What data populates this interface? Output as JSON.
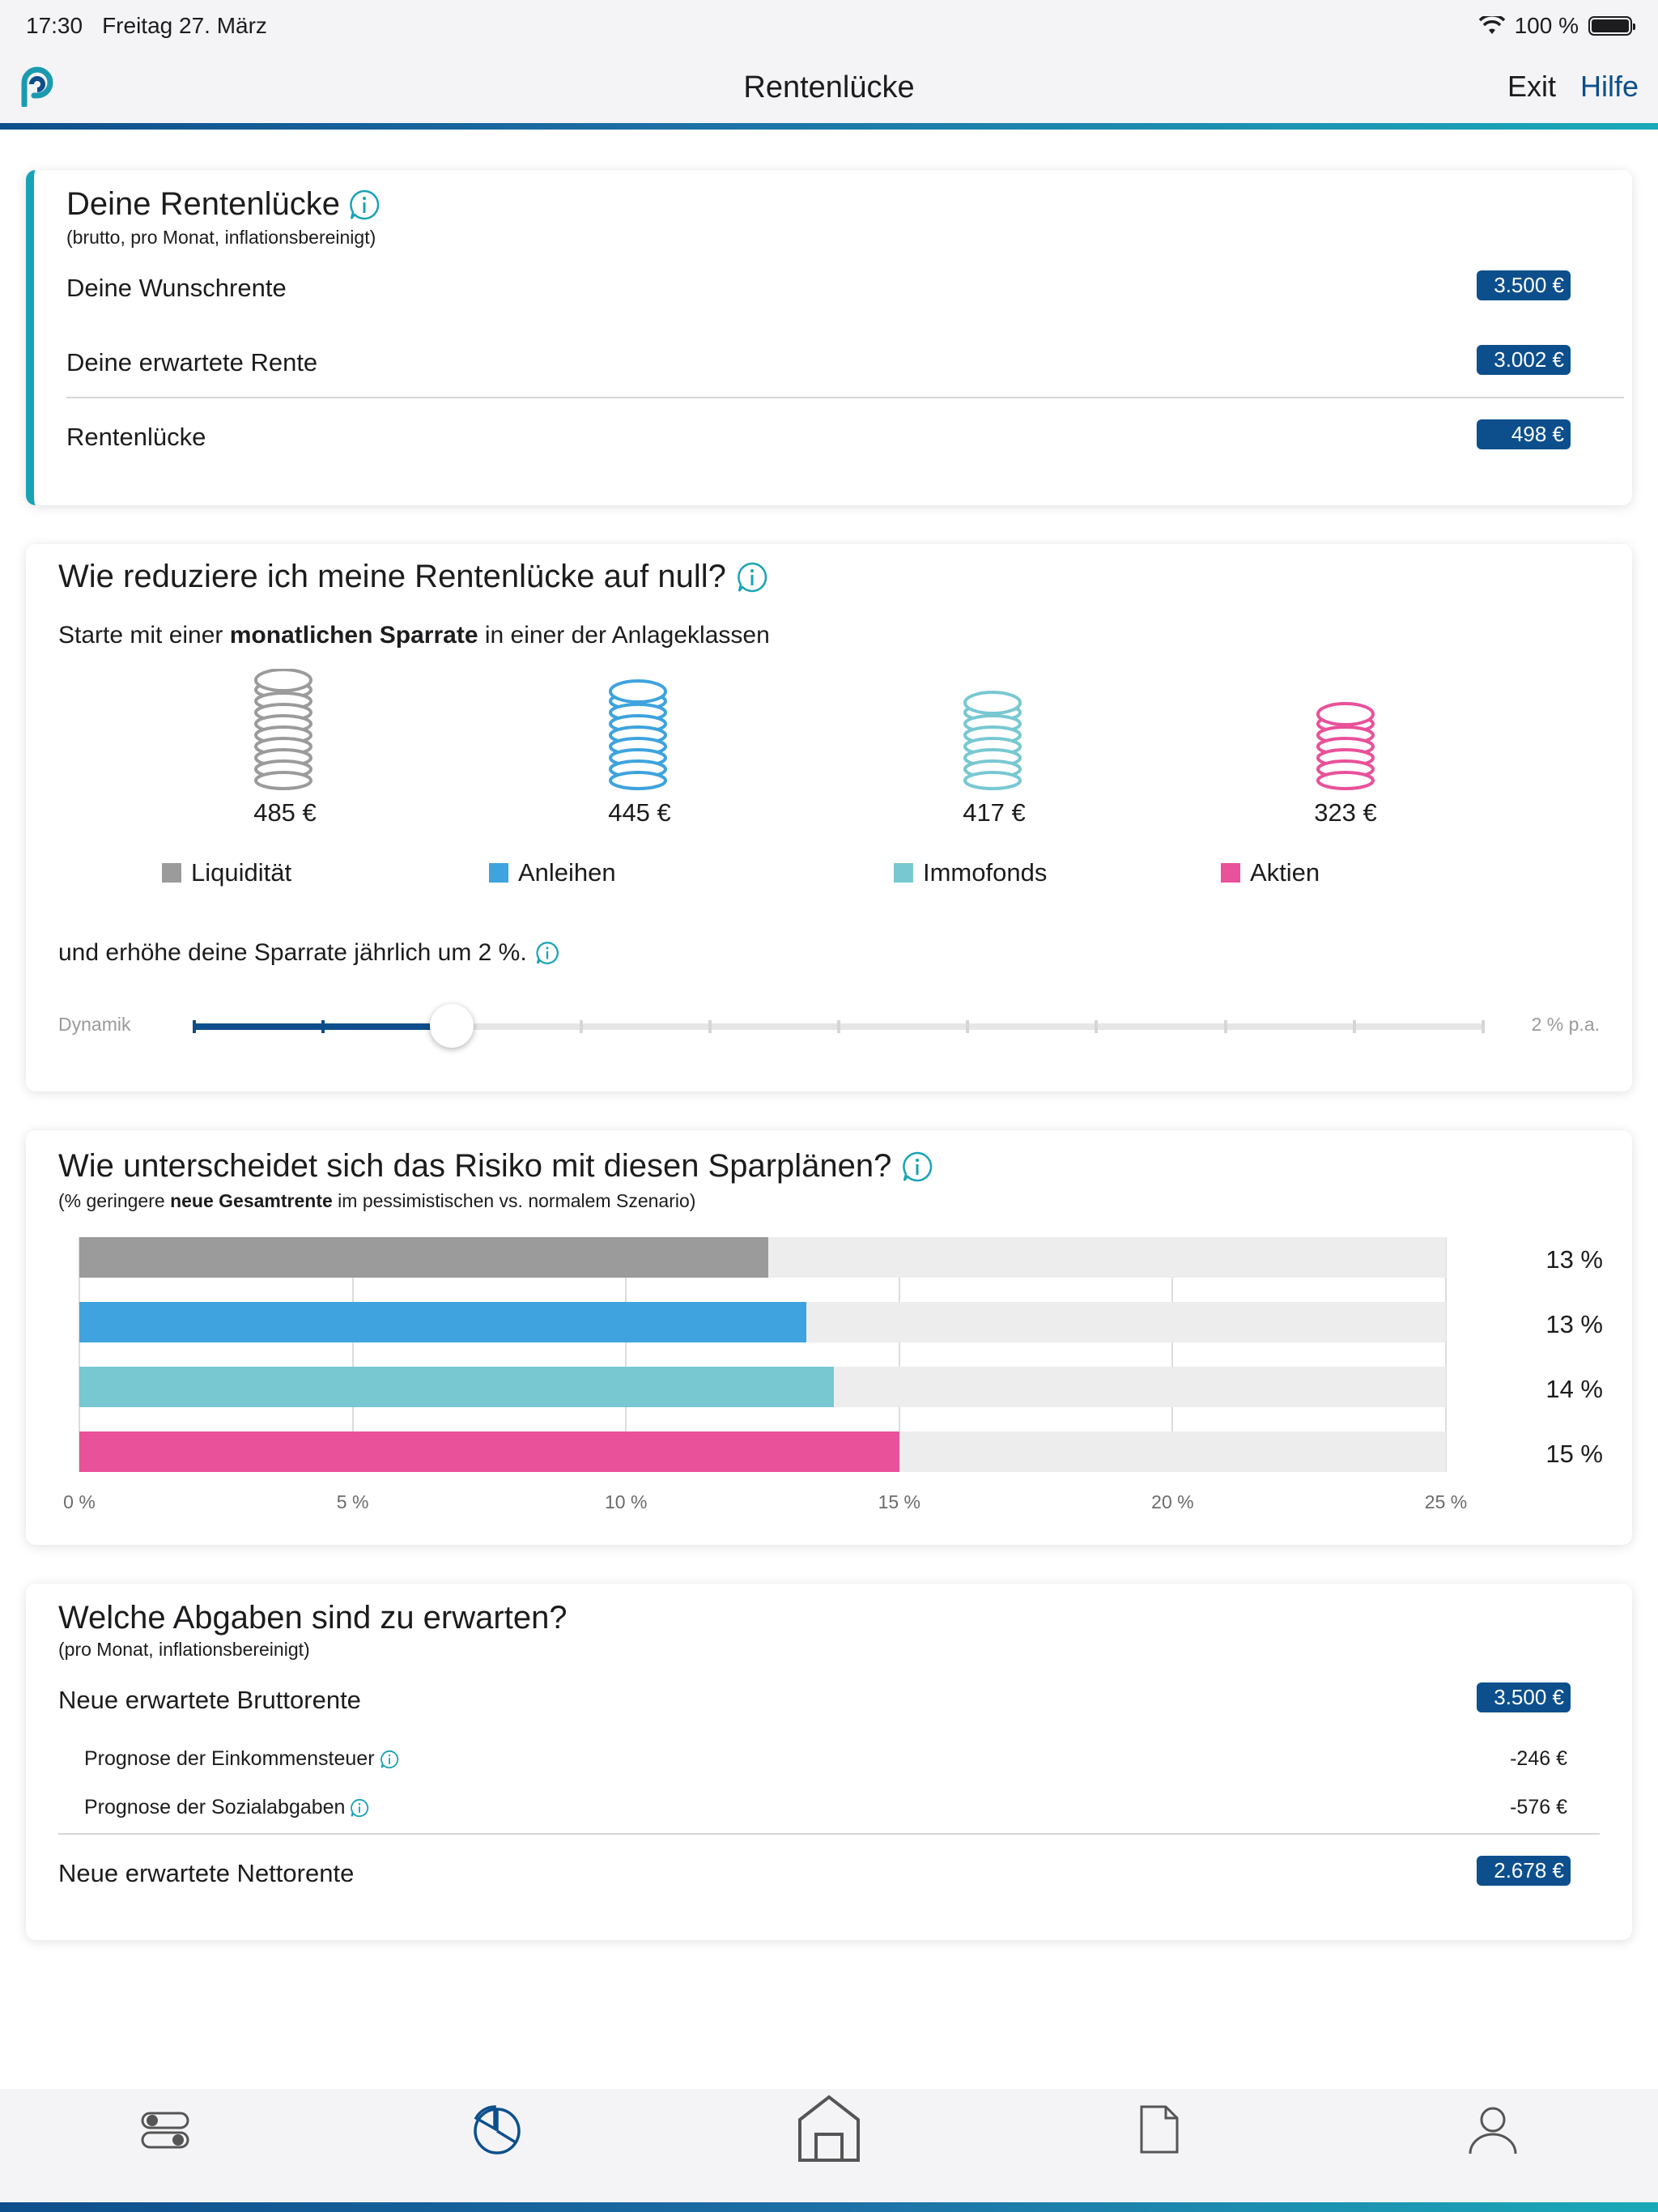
{
  "status": {
    "time": "17:30",
    "date": "Freitag 27. März",
    "battery": "100 %"
  },
  "nav": {
    "title": "Rentenlücke",
    "exit": "Exit",
    "help": "Hilfe"
  },
  "gap": {
    "title": "Deine Rentenlücke",
    "subtitle": "(brutto, pro Monat, inflationsbereinigt)",
    "rows": [
      {
        "label": "Deine Wunschrente",
        "value": "3.500 €"
      },
      {
        "label": "Deine erwartete Rente",
        "value": "3.002 €"
      },
      {
        "label": "Rentenlücke",
        "value": "498 €"
      }
    ]
  },
  "reduce": {
    "title": "Wie reduziere ich meine Rentenlücke auf null?",
    "intro_pre": "Starte mit einer ",
    "intro_bold": "monatlichen Sparrate",
    "intro_post": " in einer der Anlageklassen",
    "classes": [
      {
        "name": "Liquidität",
        "amount": "485 €",
        "color": "#9b9b9b",
        "coins": 9
      },
      {
        "name": "Anleihen",
        "amount": "445 €",
        "color": "#3ea3de",
        "coins": 8
      },
      {
        "name": "Immofonds",
        "amount": "417 €",
        "color": "#78c8d2",
        "coins": 7
      },
      {
        "name": "Aktien",
        "amount": "323 €",
        "color": "#e9519a",
        "coins": 6
      }
    ],
    "dynamic_text": "und erhöhe deine Sparrate jährlich um 2 %.",
    "slider": {
      "label": "Dynamik",
      "value_label": "2 % p.a.",
      "value": 2,
      "max": 10
    }
  },
  "risk": {
    "title": "Wie unterscheidet sich das Risiko mit diesen Sparplänen?",
    "subtitle_pre": "(% geringere ",
    "subtitle_bold": "neue Gesamtrente",
    "subtitle_post": " im pessimistischen vs. normalem Szenario)"
  },
  "chart_data": {
    "type": "bar",
    "orientation": "horizontal",
    "categories": [
      "Liquidität",
      "Anleihen",
      "Immofonds",
      "Aktien"
    ],
    "values": [
      12.6,
      13.3,
      13.8,
      15.0
    ],
    "value_labels": [
      "13 %",
      "13 %",
      "14 %",
      "15 %"
    ],
    "colors": [
      "#9b9b9b",
      "#3ea3de",
      "#78c8d2",
      "#e9519a"
    ],
    "xlim": [
      0,
      25
    ],
    "xticks": [
      "0 %",
      "5 %",
      "10 %",
      "15 %",
      "20 %",
      "25 %"
    ],
    "grid": true
  },
  "taxes": {
    "title": "Welche Abgaben sind zu erwarten?",
    "subtitle": "(pro Monat, inflationsbereinigt)",
    "gross_label": "Neue erwartete Bruttorente",
    "gross_value": "3.500 €",
    "income_tax_label": "Prognose der Einkommensteuer",
    "income_tax_value": "-246 €",
    "social_label": "Prognose der Sozialabgaben",
    "social_value": "-576 €",
    "net_label": "Neue erwartete Nettorente",
    "net_value": "2.678 €"
  },
  "tabs": [
    "settings-toggle-icon",
    "pie-chart-icon",
    "home-icon",
    "document-icon",
    "profile-icon"
  ]
}
